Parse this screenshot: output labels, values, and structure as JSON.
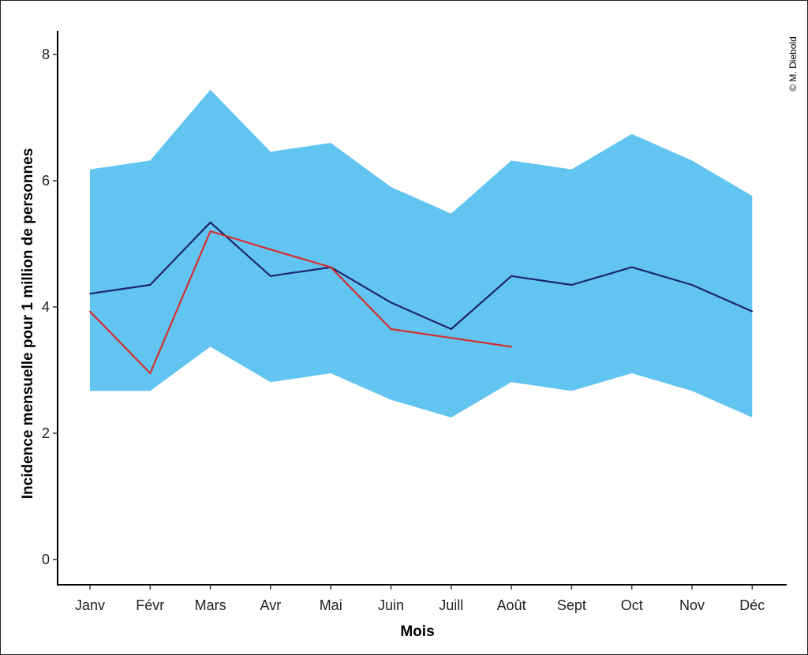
{
  "chart_data": {
    "type": "line",
    "categories": [
      "Janv",
      "Févr",
      "Mars",
      "Avr",
      "Mai",
      "Juin",
      "Juill",
      "Août",
      "Sept",
      "Oct",
      "Nov",
      "Déc"
    ],
    "xlabel": "Mois",
    "ylabel": "Incidence mensuelle pour 1 million de personnes",
    "ylim": [
      0,
      8.4
    ],
    "yticks": [
      0,
      2,
      4,
      6,
      8
    ],
    "grid": false,
    "band": {
      "lower": [
        2.67,
        2.67,
        3.37,
        2.81,
        2.95,
        2.53,
        2.25,
        2.81,
        2.67,
        2.95,
        2.67,
        2.25
      ],
      "upper": [
        6.18,
        6.32,
        7.44,
        6.46,
        6.6,
        5.9,
        5.48,
        6.32,
        6.18,
        6.74,
        6.32,
        5.76
      ],
      "color": "#62c4f0"
    },
    "series": [
      {
        "values": [
          4.21,
          4.35,
          5.34,
          4.49,
          4.63,
          4.07,
          3.65,
          4.49,
          4.35,
          4.63,
          4.35,
          3.93
        ],
        "color": "#1c2570"
      },
      {
        "values": [
          3.93,
          2.95,
          5.2,
          4.91,
          4.63,
          3.65,
          3.51,
          3.37,
          null,
          null,
          null,
          null
        ],
        "color": "#d32f2f"
      }
    ]
  },
  "credit": "© M. Diebold"
}
